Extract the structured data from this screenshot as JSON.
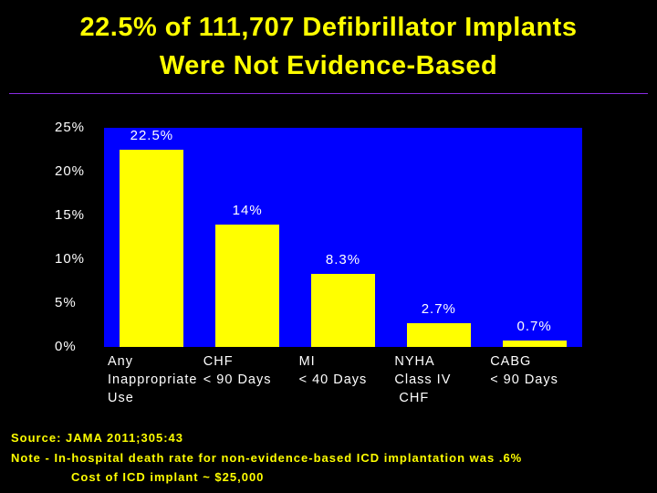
{
  "title_line1": "22.5% of 111,707 Defibrillator Implants",
  "title_line2": "Were Not Evidence-Based",
  "chart_data": {
    "type": "bar",
    "categories": [
      "Any Inappropriate Use",
      "CHF < 90 Days",
      "MI < 40 Days",
      "NYHA Class IV CHF",
      "CABG < 90 Days"
    ],
    "category_lines": [
      [
        "Any",
        "Inappropriate",
        "Use"
      ],
      [
        "CHF",
        "< 90 Days"
      ],
      [
        "MI",
        "< 40 Days"
      ],
      [
        "NYHA",
        "Class IV",
        " CHF"
      ],
      [
        "CABG",
        "< 90 Days"
      ]
    ],
    "values": [
      22.5,
      14,
      8.3,
      2.7,
      0.7
    ],
    "data_labels": [
      "22.5%",
      "14%",
      "8.3%",
      "2.7%",
      "0.7%"
    ],
    "yticks": [
      0,
      5,
      10,
      15,
      20,
      25
    ],
    "ytick_labels": [
      "0%",
      "5%",
      "10%",
      "15%",
      "20%",
      "25%"
    ],
    "ylim": [
      0,
      25
    ],
    "title": "",
    "xlabel": "",
    "ylabel": "",
    "grid": false,
    "colors": {
      "plot_bg": "#0000ff",
      "bar": "#ffff00",
      "text": "#ffffff"
    }
  },
  "footer": {
    "source": "Source: JAMA 2011;305:43",
    "note": "Note - In-hospital death rate for non-evidence-based ICD implantation was .6%",
    "cost": "Cost of ICD implant  ~  $25,000"
  }
}
